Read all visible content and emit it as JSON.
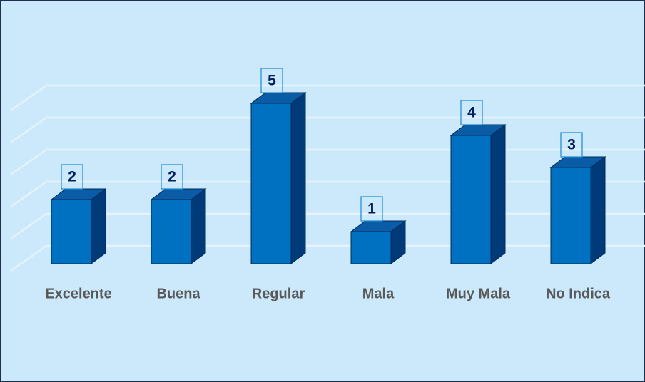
{
  "chart_data": {
    "type": "bar3d",
    "categories": [
      "Excelente",
      "Buena",
      "Regular",
      "Mala",
      "Muy Mala",
      "No Indica"
    ],
    "values": [
      2,
      2,
      5,
      1,
      4,
      3
    ],
    "color": "#0070c0",
    "ylim": [
      0,
      5
    ],
    "yticks": [
      0,
      1,
      2,
      3,
      4,
      5
    ],
    "grid": true
  }
}
